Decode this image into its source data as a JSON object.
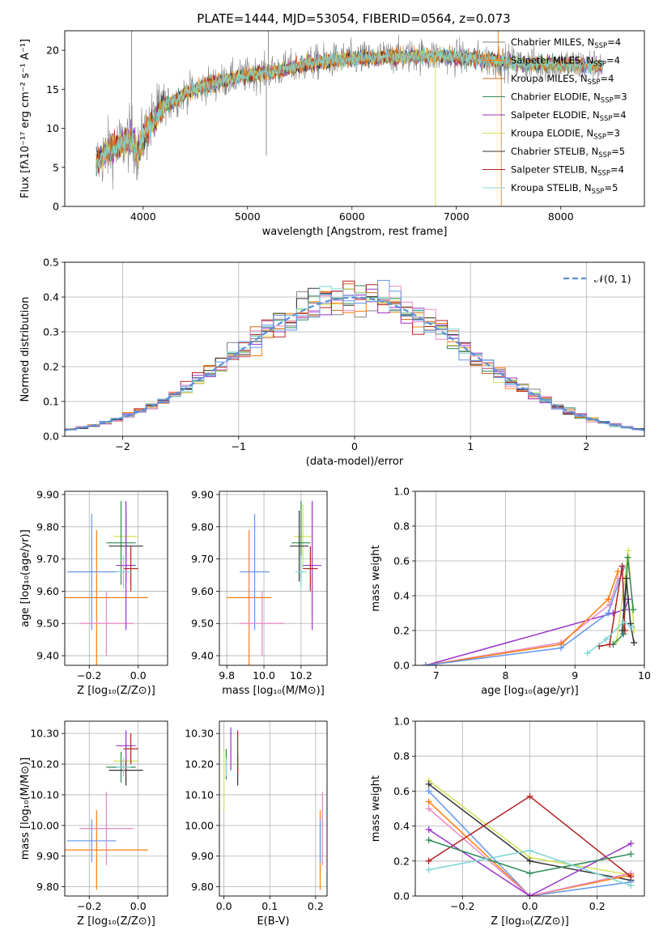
{
  "figure": {
    "title": "PLATE=1444, MJD=53054, FIBERID=0564, z=0.073"
  },
  "models": [
    {
      "name": "Chabrier MILES",
      "nssp": 4,
      "color": "#808080"
    },
    {
      "name": "Salpeter MILES",
      "nssp": 4,
      "color": "#ff7f0e"
    },
    {
      "name": "Kroupa MILES",
      "nssp": 4,
      "color": "#d2691e"
    },
    {
      "name": "Chabrier ELODIE",
      "nssp": 3,
      "color": "#2e8b57"
    },
    {
      "name": "Salpeter ELODIE",
      "nssp": 4,
      "color": "#9932cc"
    },
    {
      "name": "Kroupa ELODIE",
      "nssp": 3,
      "color": "#d4e157"
    },
    {
      "name": "Chabrier STELIB",
      "nssp": 5,
      "color": "#333333"
    },
    {
      "name": "Salpeter STELIB",
      "nssp": 4,
      "color": "#b22222"
    },
    {
      "name": "Kroupa STELIB",
      "nssp": 5,
      "color": "#7fd6d6"
    }
  ],
  "chart_data": [
    {
      "id": "spectrum",
      "type": "line",
      "xlabel": "wavelength [Angstrom, rest frame]",
      "ylabel": "Flux [fλ10⁻¹⁷ erg cm⁻² s⁻¹ A⁻¹]",
      "xlim": [
        3250,
        8800
      ],
      "ylim": [
        0,
        22.5
      ],
      "xticks": [
        4000,
        5000,
        6000,
        7000,
        8000
      ],
      "yticks": [
        0,
        5,
        10,
        15,
        20
      ],
      "grid": false,
      "legend_position": "top-right",
      "continuum": [
        [
          3550,
          5.5
        ],
        [
          3650,
          7
        ],
        [
          3800,
          8
        ],
        [
          3900,
          9
        ],
        [
          3950,
          6.5
        ],
        [
          4000,
          9
        ],
        [
          4100,
          11
        ],
        [
          4200,
          13
        ],
        [
          4300,
          13.5
        ],
        [
          4400,
          14.5
        ],
        [
          4600,
          15.5
        ],
        [
          4800,
          16.2
        ],
        [
          5000,
          16.8
        ],
        [
          5200,
          17.2
        ],
        [
          5400,
          17.7
        ],
        [
          5600,
          18.3
        ],
        [
          5800,
          18.7
        ],
        [
          6000,
          18.9
        ],
        [
          6200,
          19
        ],
        [
          6400,
          19.2
        ],
        [
          6600,
          19.3
        ],
        [
          6800,
          19.3
        ],
        [
          7000,
          19.1
        ],
        [
          7200,
          18.9
        ],
        [
          7400,
          18.6
        ],
        [
          7600,
          18.3
        ],
        [
          7800,
          18.2
        ],
        [
          8000,
          18.2
        ],
        [
          8200,
          18.1
        ],
        [
          8400,
          18
        ]
      ],
      "spikes": [
        {
          "x": 3890,
          "y": 22.5
        },
        {
          "x": 5200,
          "y": 22.5
        },
        {
          "x": 5180,
          "y": 6.5
        },
        {
          "x": 7400,
          "y": 22.5
        },
        {
          "x": 6800,
          "y": 0
        },
        {
          "x": 7430,
          "y": 0
        }
      ]
    },
    {
      "id": "residuals",
      "type": "step",
      "xlabel": "(data-model)/error",
      "ylabel": "Normed distribution",
      "xlim": [
        -2.5,
        2.5
      ],
      "ylim": [
        0,
        0.5
      ],
      "xticks": [
        -2,
        -1,
        0,
        1,
        2
      ],
      "yticks": [
        0.0,
        0.1,
        0.2,
        0.3,
        0.4,
        0.5
      ],
      "grid": true,
      "legend": "𝒩(0, 1)",
      "legend_position": "top-right",
      "bin_width": 0.1
    },
    {
      "id": "age-vs-Z",
      "type": "scatter",
      "xlabel": "Z [log₁₀(Z/Z⊙)]",
      "ylabel": "age  [log₁₀(age/yr)]",
      "xlim": [
        -0.3,
        0.12
      ],
      "ylim": [
        9.37,
        9.91
      ],
      "xticks": [
        -0.2,
        0.0
      ],
      "yticks": [
        9.4,
        9.5,
        9.6,
        9.7,
        9.8,
        9.9
      ],
      "grid": true,
      "points": [
        {
          "x": -0.17,
          "y": 9.58,
          "xerr": 0.21,
          "yerr": 0.21,
          "color": "#ff7f0e"
        },
        {
          "x": -0.19,
          "y": 9.66,
          "xerr": 0.1,
          "yerr": 0.18,
          "color": "#6495ed"
        },
        {
          "x": -0.13,
          "y": 9.5,
          "xerr": 0.11,
          "yerr": 0.1,
          "color": "#e78ac3"
        },
        {
          "x": -0.05,
          "y": 9.77,
          "xerr": 0.05,
          "yerr": 0.1,
          "color": "#d4e157"
        },
        {
          "x": -0.07,
          "y": 9.75,
          "xerr": 0.06,
          "yerr": 0.13,
          "color": "#2e8b57"
        },
        {
          "x": -0.05,
          "y": 9.74,
          "xerr": 0.07,
          "yerr": 0.11,
          "color": "#333333"
        },
        {
          "x": -0.05,
          "y": 9.68,
          "xerr": 0.04,
          "yerr": 0.2,
          "color": "#9932cc"
        },
        {
          "x": -0.03,
          "y": 9.67,
          "xerr": 0.03,
          "yerr": 0.07,
          "color": "#b22222"
        },
        {
          "x": -0.06,
          "y": 9.66,
          "xerr": 0.03,
          "yerr": 0.05,
          "color": "#7fd6d6"
        }
      ]
    },
    {
      "id": "age-vs-mass",
      "type": "scatter",
      "xlabel": "mass [log₁₀(M/M⊙)]",
      "ylabel": "",
      "xlim": [
        9.76,
        10.34
      ],
      "ylim": [
        9.37,
        9.91
      ],
      "xticks": [
        9.8,
        10.0,
        10.2
      ],
      "yticks": [
        9.4,
        9.5,
        9.6,
        9.7,
        9.8,
        9.9
      ],
      "grid": true,
      "points": [
        {
          "x": 9.92,
          "y": 9.58,
          "xerr": 0.12,
          "yerr": 0.21,
          "color": "#ff7f0e"
        },
        {
          "x": 9.95,
          "y": 9.66,
          "xerr": 0.08,
          "yerr": 0.18,
          "color": "#6495ed"
        },
        {
          "x": 9.99,
          "y": 9.5,
          "xerr": 0.12,
          "yerr": 0.1,
          "color": "#e78ac3"
        },
        {
          "x": 10.21,
          "y": 9.77,
          "xerr": 0.05,
          "yerr": 0.1,
          "color": "#d4e157"
        },
        {
          "x": 10.2,
          "y": 9.75,
          "xerr": 0.05,
          "yerr": 0.13,
          "color": "#2e8b57"
        },
        {
          "x": 10.19,
          "y": 9.74,
          "xerr": 0.05,
          "yerr": 0.11,
          "color": "#333333"
        },
        {
          "x": 10.26,
          "y": 9.68,
          "xerr": 0.05,
          "yerr": 0.2,
          "color": "#9932cc"
        },
        {
          "x": 10.25,
          "y": 9.67,
          "xerr": 0.04,
          "yerr": 0.07,
          "color": "#b22222"
        },
        {
          "x": 10.2,
          "y": 9.66,
          "xerr": 0.03,
          "yerr": 0.05,
          "color": "#7fd6d6"
        }
      ]
    },
    {
      "id": "weight-vs-age",
      "type": "line",
      "xlabel": "age  [log₁₀(age/yr)]",
      "ylabel": "mass weight",
      "xlim": [
        6.7,
        10
      ],
      "ylim": [
        0,
        1
      ],
      "xticks": [
        7,
        8,
        9,
        10
      ],
      "yticks": [
        0.0,
        0.2,
        0.4,
        0.6,
        0.8,
        1.0
      ],
      "grid": true,
      "series": [
        {
          "color": "#9932cc",
          "points": [
            [
              6.85,
              0
            ],
            [
              9.55,
              0.3
            ],
            [
              9.72,
              0.32
            ],
            [
              9.77,
              0.38
            ]
          ]
        },
        {
          "color": "#e78ac3",
          "points": [
            [
              6.85,
              0
            ],
            [
              8.8,
              0.13
            ],
            [
              9.5,
              0.35
            ],
            [
              9.62,
              0.5
            ]
          ]
        },
        {
          "color": "#ff7f0e",
          "points": [
            [
              6.85,
              0
            ],
            [
              8.8,
              0.12
            ],
            [
              9.48,
              0.38
            ],
            [
              9.62,
              0.54
            ]
          ]
        },
        {
          "color": "#6495ed",
          "points": [
            [
              6.85,
              0
            ],
            [
              8.8,
              0.1
            ],
            [
              9.48,
              0.3
            ],
            [
              9.7,
              0.56
            ]
          ]
        },
        {
          "color": "#d4e157",
          "points": [
            [
              9.6,
              0.14
            ],
            [
              9.72,
              0.5
            ],
            [
              9.77,
              0.66
            ],
            [
              9.85,
              0.2
            ]
          ]
        },
        {
          "color": "#2e8b57",
          "points": [
            [
              9.55,
              0.12
            ],
            [
              9.7,
              0.18
            ],
            [
              9.76,
              0.62
            ],
            [
              9.84,
              0.32
            ]
          ]
        },
        {
          "color": "#b22222",
          "points": [
            [
              9.35,
              0.11
            ],
            [
              9.5,
              0.12
            ],
            [
              9.68,
              0.57
            ],
            [
              9.72,
              0.2
            ]
          ]
        },
        {
          "color": "#333333",
          "points": [
            [
              9.68,
              0.2
            ],
            [
              9.74,
              0.5
            ],
            [
              9.8,
              0.24
            ],
            [
              9.85,
              0.13
            ]
          ]
        },
        {
          "color": "#7fd6d6",
          "points": [
            [
              9.18,
              0.07
            ],
            [
              9.45,
              0.15
            ],
            [
              9.7,
              0.25
            ],
            [
              9.82,
              0.22
            ]
          ]
        }
      ]
    },
    {
      "id": "mass-vs-Z",
      "type": "scatter",
      "xlabel": "Z [log₁₀(Z/Z⊙)]",
      "ylabel": "mass [log₁₀(M/M⊙)]",
      "xlim": [
        -0.3,
        0.12
      ],
      "ylim": [
        9.77,
        10.34
      ],
      "xticks": [
        -0.2,
        0.0
      ],
      "yticks": [
        9.8,
        9.9,
        10.0,
        10.1,
        10.2,
        10.3
      ],
      "grid": true,
      "points": [
        {
          "x": -0.17,
          "y": 9.92,
          "xerr": 0.21,
          "yerr": 0.13,
          "color": "#ff7f0e"
        },
        {
          "x": -0.19,
          "y": 9.95,
          "xerr": 0.1,
          "yerr": 0.07,
          "color": "#6495ed"
        },
        {
          "x": -0.13,
          "y": 9.99,
          "xerr": 0.11,
          "yerr": 0.12,
          "color": "#e78ac3"
        },
        {
          "x": -0.05,
          "y": 10.21,
          "xerr": 0.05,
          "yerr": 0.07,
          "color": "#d4e157"
        },
        {
          "x": -0.07,
          "y": 10.19,
          "xerr": 0.06,
          "yerr": 0.05,
          "color": "#2e8b57"
        },
        {
          "x": -0.05,
          "y": 10.18,
          "xerr": 0.07,
          "yerr": 0.05,
          "color": "#333333"
        },
        {
          "x": -0.05,
          "y": 10.26,
          "xerr": 0.04,
          "yerr": 0.05,
          "color": "#9932cc"
        },
        {
          "x": -0.03,
          "y": 10.25,
          "xerr": 0.03,
          "yerr": 0.05,
          "color": "#b22222"
        },
        {
          "x": -0.06,
          "y": 10.19,
          "xerr": 0.03,
          "yerr": 0.03,
          "color": "#7fd6d6"
        }
      ]
    },
    {
      "id": "mass-vs-EBV",
      "type": "scatter",
      "xlabel": "E(B-V)",
      "ylabel": "",
      "xlim": [
        -0.01,
        0.225
      ],
      "ylim": [
        9.77,
        10.34
      ],
      "xticks": [
        0.0,
        0.1,
        0.2
      ],
      "yticks": [
        9.8,
        9.9,
        10.0,
        10.1,
        10.2,
        10.3
      ],
      "grid": true,
      "points": [
        {
          "x": 0.21,
          "y": 9.92,
          "xerr": 0,
          "yerr": 0.13,
          "color": "#ff7f0e"
        },
        {
          "x": 0.21,
          "y": 9.95,
          "xerr": 0,
          "yerr": 0.07,
          "color": "#6495ed"
        },
        {
          "x": 0.215,
          "y": 9.99,
          "xerr": 0,
          "yerr": 0.12,
          "color": "#e78ac3"
        },
        {
          "x": 0.0,
          "y": 10.15,
          "xerr": 0,
          "yerr": 0.1,
          "color": "#d4e157"
        },
        {
          "x": 0.005,
          "y": 10.2,
          "xerr": 0,
          "yerr": 0.05,
          "color": "#2e8b57"
        },
        {
          "x": 0.03,
          "y": 10.18,
          "xerr": 0,
          "yerr": 0.05,
          "color": "#333333"
        },
        {
          "x": 0.015,
          "y": 10.25,
          "xerr": 0,
          "yerr": 0.07,
          "color": "#9932cc"
        },
        {
          "x": 0.03,
          "y": 10.24,
          "xerr": 0,
          "yerr": 0.07,
          "color": "#b22222"
        },
        {
          "x": 0.005,
          "y": 10.19,
          "xerr": 0,
          "yerr": 0.03,
          "color": "#7fd6d6"
        }
      ]
    },
    {
      "id": "weight-vs-Z",
      "type": "line",
      "xlabel": "Z [log₁₀(Z/Z⊙)]",
      "ylabel": "mass weight",
      "xlim": [
        -0.34,
        0.34
      ],
      "ylim": [
        0,
        1
      ],
      "xticks": [
        -0.2,
        0.0,
        0.2
      ],
      "yticks": [
        0.0,
        0.2,
        0.4,
        0.6,
        0.8,
        1.0
      ],
      "grid": true,
      "series": [
        {
          "color": "#d4e157",
          "points": [
            [
              -0.3,
              0.66
            ],
            [
              0.0,
              0.22
            ],
            [
              0.3,
              0.12
            ]
          ]
        },
        {
          "color": "#333333",
          "points": [
            [
              -0.3,
              0.64
            ],
            [
              0.0,
              0.2
            ],
            [
              0.3,
              0.09
            ]
          ]
        },
        {
          "color": "#6495ed",
          "points": [
            [
              -0.3,
              0.6
            ],
            [
              0.0,
              0.0
            ],
            [
              0.3,
              0.08
            ]
          ]
        },
        {
          "color": "#ff7f0e",
          "points": [
            [
              -0.3,
              0.54
            ],
            [
              0.0,
              0.0
            ],
            [
              0.3,
              0.12
            ]
          ]
        },
        {
          "color": "#e78ac3",
          "points": [
            [
              -0.3,
              0.5
            ],
            [
              0.0,
              0.0
            ],
            [
              0.3,
              0.13
            ]
          ]
        },
        {
          "color": "#9932cc",
          "points": [
            [
              -0.3,
              0.38
            ],
            [
              0.0,
              0.0
            ],
            [
              0.3,
              0.3
            ]
          ]
        },
        {
          "color": "#b22222",
          "points": [
            [
              -0.3,
              0.2
            ],
            [
              0.0,
              0.57
            ],
            [
              0.3,
              0.11
            ]
          ]
        },
        {
          "color": "#2e8b57",
          "points": [
            [
              -0.3,
              0.32
            ],
            [
              0.0,
              0.13
            ],
            [
              0.3,
              0.24
            ]
          ]
        },
        {
          "color": "#7fd6d6",
          "points": [
            [
              -0.3,
              0.15
            ],
            [
              0.0,
              0.26
            ],
            [
              0.3,
              0.06
            ]
          ]
        }
      ]
    }
  ]
}
